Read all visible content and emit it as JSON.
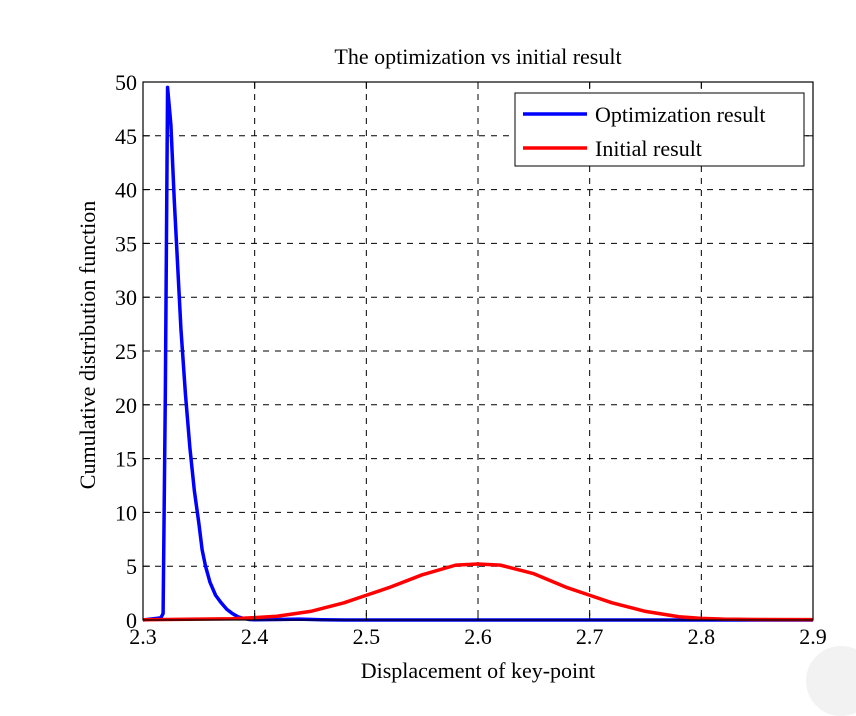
{
  "chart_data": {
    "type": "line",
    "title": "The optimization vs initial result",
    "xlabel": "Displacement of key-point",
    "ylabel": "Cumulative distribution function",
    "xlim": [
      2.3,
      2.9
    ],
    "ylim": [
      0,
      50
    ],
    "xticks": [
      2.3,
      2.4,
      2.5,
      2.6,
      2.7,
      2.8,
      2.9
    ],
    "xtick_labels": [
      "2.3",
      "2.4",
      "2.5",
      "2.6",
      "2.7",
      "2.8",
      "2.9"
    ],
    "yticks": [
      0,
      5,
      10,
      15,
      20,
      25,
      30,
      35,
      40,
      45,
      50
    ],
    "ytick_labels": [
      "0",
      "5",
      "10",
      "15",
      "20",
      "25",
      "30",
      "35",
      "40",
      "45",
      "50"
    ],
    "grid": true,
    "legend_position": "top-right",
    "series": [
      {
        "name": "Optimization result",
        "color": "#0000ff",
        "x": [
          2.3,
          2.316,
          2.318,
          2.32,
          2.322,
          2.325,
          2.328,
          2.331,
          2.334,
          2.338,
          2.342,
          2.346,
          2.35,
          2.353,
          2.356,
          2.36,
          2.365,
          2.37,
          2.375,
          2.38,
          2.385,
          2.39,
          2.395,
          2.4,
          2.42,
          2.44,
          2.46,
          2.48,
          2.5,
          2.6,
          2.7,
          2.8,
          2.9
        ],
        "y": [
          0,
          0.2,
          0.6,
          21,
          49.5,
          46,
          39,
          33,
          27,
          21,
          16,
          12,
          9,
          6.5,
          5,
          3.5,
          2.3,
          1.6,
          1.0,
          0.6,
          0.3,
          0.15,
          0.05,
          0.02,
          0.05,
          0.08,
          0.02,
          0.0,
          0.0,
          0.0,
          0.0,
          0.0,
          0.0
        ]
      },
      {
        "name": "Initial result",
        "color": "#ff0000",
        "x": [
          2.3,
          2.32,
          2.35,
          2.38,
          2.4,
          2.42,
          2.45,
          2.48,
          2.5,
          2.52,
          2.55,
          2.58,
          2.6,
          2.62,
          2.65,
          2.68,
          2.7,
          2.72,
          2.75,
          2.78,
          2.8,
          2.82,
          2.85,
          2.9
        ],
        "y": [
          0.02,
          0.05,
          0.08,
          0.12,
          0.22,
          0.35,
          0.8,
          1.6,
          2.3,
          3.0,
          4.2,
          5.1,
          5.2,
          5.1,
          4.3,
          3.0,
          2.3,
          1.6,
          0.8,
          0.3,
          0.15,
          0.08,
          0.05,
          0.03
        ]
      }
    ]
  }
}
